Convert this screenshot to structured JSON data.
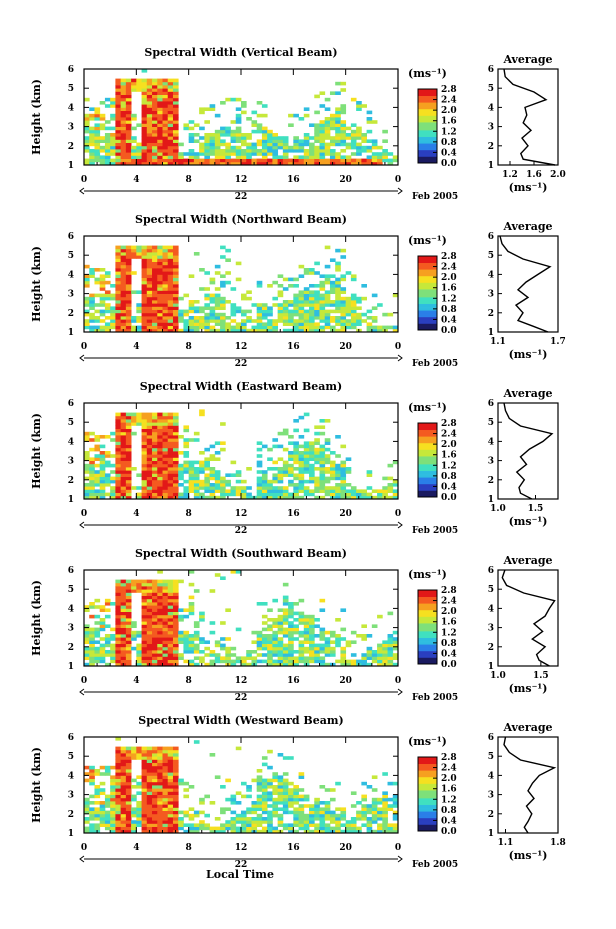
{
  "figure": {
    "xlabel": "Local Time",
    "date_label": "Feb 2005",
    "day_label": "22",
    "avg_title": "Average",
    "cbar_unit": "(ms⁻¹)",
    "avg_unit": "(ms⁻¹)"
  },
  "colormap": [
    "#1a1a60",
    "#2a3fc0",
    "#2a7fe8",
    "#2fbde0",
    "#40e0c0",
    "#7ee07a",
    "#c6e83a",
    "#f6e020",
    "#f6a020",
    "#f45a20",
    "#e21818"
  ],
  "chart_data": [
    {
      "type": "heatmap",
      "title": "Spectral Width (Vertical Beam)",
      "ylabel": "Height (km)",
      "x_ticks": [
        "0",
        "4",
        "8",
        "12",
        "16",
        "20",
        "0"
      ],
      "xlim": [
        0,
        24
      ],
      "y_ticks": [
        "1",
        "2",
        "3",
        "4",
        "5",
        "6"
      ],
      "ylim": [
        1,
        6
      ],
      "colorbar_ticks": [
        "0.0",
        "0.4",
        "0.8",
        "1.2",
        "1.6",
        "2.0",
        "2.4",
        "2.8"
      ],
      "colorbar_range": [
        0.0,
        2.8
      ],
      "average_profile": {
        "xlim": [
          1.0,
          2.0
        ],
        "x_ticks": [
          "1.2",
          "1.6",
          "2.0"
        ],
        "height": [
          1.0,
          1.3,
          1.6,
          2.0,
          2.4,
          2.8,
          3.2,
          3.6,
          4.0,
          4.4,
          4.8,
          5.2,
          5.6,
          6.0
        ],
        "width": [
          1.95,
          1.42,
          1.38,
          1.5,
          1.4,
          1.55,
          1.42,
          1.48,
          1.45,
          1.8,
          1.6,
          1.25,
          1.12,
          1.1
        ]
      }
    },
    {
      "type": "heatmap",
      "title": "Spectral Width (Northward Beam)",
      "ylabel": "Height (km)",
      "x_ticks": [
        "0",
        "4",
        "8",
        "12",
        "16",
        "20",
        "0"
      ],
      "xlim": [
        0,
        24
      ],
      "y_ticks": [
        "1",
        "2",
        "3",
        "4",
        "5",
        "6"
      ],
      "ylim": [
        1,
        6
      ],
      "colorbar_ticks": [
        "0.0",
        "0.4",
        "0.8",
        "1.2",
        "1.6",
        "2.0",
        "2.4",
        "2.8"
      ],
      "colorbar_range": [
        0.0,
        2.8
      ],
      "average_profile": {
        "xlim": [
          1.1,
          1.7
        ],
        "x_ticks": [
          "1.1",
          "1.7"
        ],
        "height": [
          1.0,
          1.3,
          1.6,
          2.0,
          2.4,
          2.8,
          3.2,
          3.6,
          4.0,
          4.4,
          4.8,
          5.2,
          5.6,
          6.0
        ],
        "width": [
          1.6,
          1.45,
          1.3,
          1.35,
          1.28,
          1.4,
          1.3,
          1.38,
          1.5,
          1.62,
          1.35,
          1.2,
          1.14,
          1.12
        ]
      }
    },
    {
      "type": "heatmap",
      "title": "Spectral Width (Eastward Beam)",
      "ylabel": "Height (km)",
      "x_ticks": [
        "0",
        "4",
        "8",
        "12",
        "16",
        "20",
        "0"
      ],
      "xlim": [
        0,
        24
      ],
      "y_ticks": [
        "1",
        "2",
        "3",
        "4",
        "5",
        "6"
      ],
      "ylim": [
        1,
        6
      ],
      "colorbar_ticks": [
        "0.0",
        "0.4",
        "0.8",
        "1.2",
        "1.6",
        "2.0",
        "2.4",
        "2.8"
      ],
      "colorbar_range": [
        0.0,
        2.8
      ],
      "average_profile": {
        "xlim": [
          1.0,
          1.8
        ],
        "x_ticks": [
          "1.0",
          "1.5"
        ],
        "height": [
          1.0,
          1.3,
          1.6,
          2.0,
          2.4,
          2.8,
          3.2,
          3.6,
          4.0,
          4.4,
          4.8,
          5.2,
          5.6,
          6.0
        ],
        "width": [
          1.45,
          1.3,
          1.28,
          1.35,
          1.25,
          1.38,
          1.3,
          1.42,
          1.6,
          1.72,
          1.3,
          1.15,
          1.1,
          1.08
        ]
      }
    },
    {
      "type": "heatmap",
      "title": "Spectral Width (Southward Beam)",
      "ylabel": "Height (km)",
      "x_ticks": [
        "0",
        "4",
        "8",
        "12",
        "16",
        "20",
        "0"
      ],
      "xlim": [
        0,
        24
      ],
      "y_ticks": [
        "1",
        "2",
        "3",
        "4",
        "5",
        "6"
      ],
      "ylim": [
        1,
        6
      ],
      "colorbar_ticks": [
        "0.0",
        "0.4",
        "0.8",
        "1.2",
        "1.6",
        "2.0",
        "2.4",
        "2.8"
      ],
      "colorbar_range": [
        0.0,
        2.8
      ],
      "average_profile": {
        "xlim": [
          1.0,
          1.7
        ],
        "x_ticks": [
          "1.0",
          "1.5"
        ],
        "height": [
          1.0,
          1.3,
          1.6,
          2.0,
          2.4,
          2.8,
          3.2,
          3.6,
          4.0,
          4.4,
          4.8,
          5.2,
          5.6,
          6.0
        ],
        "width": [
          1.6,
          1.48,
          1.45,
          1.55,
          1.4,
          1.52,
          1.42,
          1.55,
          1.6,
          1.66,
          1.3,
          1.1,
          1.05,
          1.08
        ]
      }
    },
    {
      "type": "heatmap",
      "title": "Spectral Width (Westward Beam)",
      "ylabel": "Height (km)",
      "x_ticks": [
        "0",
        "4",
        "8",
        "12",
        "16",
        "20",
        "0"
      ],
      "xlim": [
        0,
        24
      ],
      "y_ticks": [
        "1",
        "2",
        "3",
        "4",
        "5",
        "6"
      ],
      "ylim": [
        1,
        6
      ],
      "colorbar_ticks": [
        "0.0",
        "0.4",
        "0.8",
        "1.2",
        "1.6",
        "2.0",
        "2.4",
        "2.8"
      ],
      "colorbar_range": [
        0.0,
        2.8
      ],
      "average_profile": {
        "xlim": [
          1.0,
          1.8
        ],
        "x_ticks": [
          "1.1",
          "1.8"
        ],
        "height": [
          1.0,
          1.3,
          1.6,
          2.0,
          2.4,
          2.8,
          3.2,
          3.6,
          4.0,
          4.4,
          4.8,
          5.2,
          5.6,
          6.0
        ],
        "width": [
          1.4,
          1.35,
          1.4,
          1.45,
          1.38,
          1.48,
          1.4,
          1.46,
          1.55,
          1.75,
          1.3,
          1.15,
          1.08,
          1.1
        ]
      }
    }
  ]
}
